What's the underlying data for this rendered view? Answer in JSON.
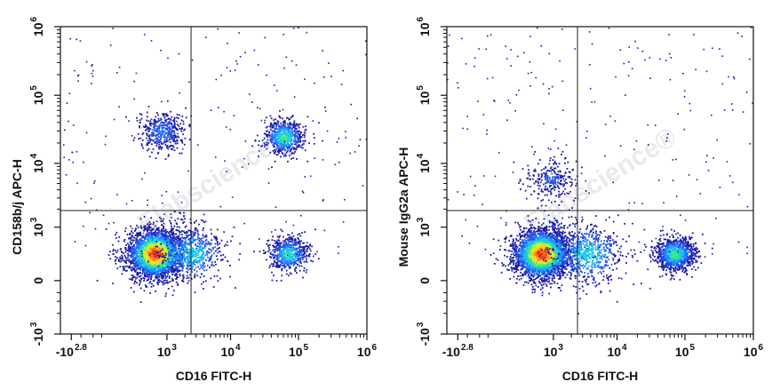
{
  "watermark": "Elabscience",
  "watermark_mark": "®",
  "colors": {
    "density": [
      "#1a1aa8",
      "#2450e0",
      "#1e90ff",
      "#19c8e6",
      "#3ce68c",
      "#c8f03c",
      "#ffd21e",
      "#ff7814",
      "#e61414"
    ],
    "axes": "#111111",
    "gate": "#222222"
  },
  "chart_data": [
    {
      "type": "scatter",
      "scale": "biexponential",
      "xlabel": "CD16 FITC-H",
      "ylabel": "CD158b/j APC-H",
      "x_ticks": [
        {
          "base": "-10",
          "exp": "2.8",
          "value": -631
        },
        {
          "base": "10",
          "exp": "3",
          "value": 1000
        },
        {
          "base": "10",
          "exp": "4",
          "value": 10000
        },
        {
          "base": "10",
          "exp": "5",
          "value": 100000
        },
        {
          "base": "10",
          "exp": "6",
          "value": 1000000
        }
      ],
      "y_ticks": [
        {
          "base": "-10",
          "exp": "3",
          "value": -1000
        },
        {
          "base": "0",
          "exp": "",
          "value": 0
        },
        {
          "base": "10",
          "exp": "3",
          "value": 1000
        },
        {
          "base": "10",
          "exp": "4",
          "value": 10000
        },
        {
          "base": "10",
          "exp": "5",
          "value": 100000
        },
        {
          "base": "10",
          "exp": "6",
          "value": 1000000
        }
      ],
      "quadrant_gate": {
        "x": 2500,
        "y": 1900
      },
      "populations": [
        {
          "x": 600,
          "y": 300,
          "spread": 1.0,
          "weight": 0.55,
          "peak": 1.0
        },
        {
          "x": 2500,
          "y": 300,
          "spread": 1.2,
          "weight": 0.12,
          "peak": 0.45
        },
        {
          "x": 70000,
          "y": 300,
          "spread": 0.7,
          "weight": 0.12,
          "peak": 0.5
        },
        {
          "x": 60000,
          "y": 25000,
          "spread": 0.7,
          "weight": 0.13,
          "peak": 0.55
        },
        {
          "x": 800,
          "y": 30000,
          "spread": 0.8,
          "weight": 0.08,
          "peak": 0.25
        }
      ]
    },
    {
      "type": "scatter",
      "scale": "biexponential",
      "xlabel": "CD16 FITC-H",
      "ylabel": "Mouse IgG2a APC-H",
      "x_ticks": [
        {
          "base": "-10",
          "exp": "2.8",
          "value": -631
        },
        {
          "base": "10",
          "exp": "3",
          "value": 1000
        },
        {
          "base": "10",
          "exp": "4",
          "value": 10000
        },
        {
          "base": "10",
          "exp": "5",
          "value": 100000
        },
        {
          "base": "10",
          "exp": "6",
          "value": 1000000
        }
      ],
      "y_ticks": [
        {
          "base": "-10",
          "exp": "3",
          "value": -1000
        },
        {
          "base": "0",
          "exp": "",
          "value": 0
        },
        {
          "base": "10",
          "exp": "3",
          "value": 1000
        },
        {
          "base": "10",
          "exp": "4",
          "value": 10000
        },
        {
          "base": "10",
          "exp": "5",
          "value": 100000
        },
        {
          "base": "10",
          "exp": "6",
          "value": 1000000
        }
      ],
      "quadrant_gate": {
        "x": 2500,
        "y": 1900
      },
      "populations": [
        {
          "x": 600,
          "y": 300,
          "spread": 1.0,
          "weight": 0.62,
          "peak": 1.0
        },
        {
          "x": 3500,
          "y": 300,
          "spread": 1.3,
          "weight": 0.13,
          "peak": 0.45
        },
        {
          "x": 70000,
          "y": 300,
          "spread": 0.7,
          "weight": 0.2,
          "peak": 0.55
        },
        {
          "x": 900,
          "y": 6000,
          "spread": 0.9,
          "weight": 0.05,
          "peak": 0.15
        }
      ]
    }
  ]
}
